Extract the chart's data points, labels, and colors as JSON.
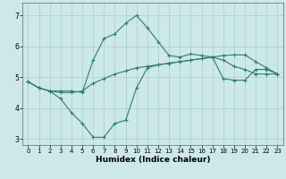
{
  "xlabel": "Humidex (Indice chaleur)",
  "x": [
    0,
    1,
    2,
    3,
    4,
    5,
    6,
    7,
    8,
    9,
    10,
    11,
    12,
    13,
    14,
    15,
    16,
    17,
    18,
    19,
    20,
    21,
    22,
    23
  ],
  "line_top": [
    4.85,
    4.65,
    4.55,
    4.55,
    4.55,
    4.5,
    5.55,
    6.25,
    6.4,
    6.75,
    7.0,
    6.6,
    6.15,
    5.7,
    5.65,
    5.75,
    5.7,
    5.65,
    5.55,
    5.35,
    5.25,
    5.1,
    5.1,
    5.1
  ],
  "line_mid": [
    4.85,
    4.65,
    4.55,
    4.5,
    4.5,
    4.55,
    4.8,
    4.95,
    5.1,
    5.2,
    5.3,
    5.35,
    5.4,
    5.45,
    5.5,
    5.55,
    5.6,
    5.65,
    5.7,
    5.72,
    5.72,
    5.5,
    5.3,
    5.1
  ],
  "line_bot": [
    4.85,
    4.65,
    4.55,
    4.3,
    3.85,
    3.5,
    3.05,
    3.05,
    3.5,
    3.6,
    4.65,
    5.3,
    5.4,
    5.45,
    5.5,
    5.55,
    5.6,
    5.65,
    4.95,
    4.9,
    4.9,
    5.25,
    5.25,
    5.1
  ],
  "color": "#2e7d6e",
  "bg_color": "#cce8e8",
  "grid_color": "#aacccc",
  "ylim": [
    2.8,
    7.4
  ],
  "xlim": [
    -0.5,
    23.5
  ],
  "yticks": [
    3,
    4,
    5,
    6,
    7
  ],
  "xticks": [
    0,
    1,
    2,
    3,
    4,
    5,
    6,
    7,
    8,
    9,
    10,
    11,
    12,
    13,
    14,
    15,
    16,
    17,
    18,
    19,
    20,
    21,
    22,
    23
  ]
}
